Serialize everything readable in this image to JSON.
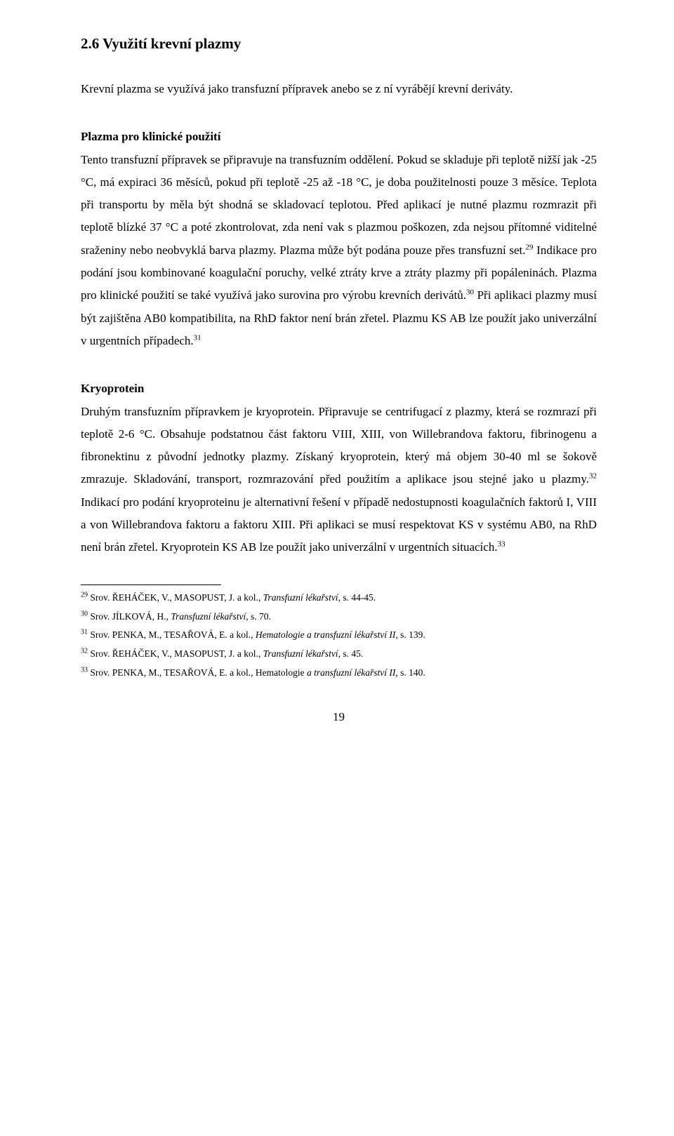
{
  "heading": "2.6 Využití krevní plazmy",
  "intro": "Krevní plazma se využívá jako transfuzní přípravek anebo se z ní vyrábějí krevní deriváty.",
  "section1": {
    "title": "Plazma pro klinické použití",
    "body_pre29": "Tento transfuzní přípravek se připravuje na transfuzním oddělení. Pokud se skladuje při teplotě nižší jak -25 °C, má expiraci 36 měsíců, pokud při teplotě -25 až -18 °C, je doba použitelnosti pouze 3 měsíce. Teplota při transportu by měla být shodná se skladovací teplotou. Před aplikací je nutné plazmu rozmrazit při teplotě blízké 37 °C a poté zkontrolovat, zda není vak s plazmou poškozen, zda nejsou přítomné viditelné sraženiny nebo neobvyklá barva plazmy. Plazma může být podána pouze přes transfuzní set.",
    "sup29": "29",
    "body_29_30": " Indikace pro podání jsou kombinované koagulační poruchy, velké ztráty krve a ztráty plazmy při popáleninách. Plazma pro klinické použití se také využívá jako surovina pro výrobu krevních derivátů.",
    "sup30": "30",
    "body_30_31": " Při aplikaci plazmy musí být zajištěna AB0 kompatibilita, na RhD faktor není brán zřetel. Plazmu KS AB lze použít jako univerzální v urgentních případech.",
    "sup31": "31"
  },
  "section2": {
    "title": "Kryoprotein",
    "body_pre32": "Druhým transfuzním přípravkem je kryoprotein. Připravuje se centrifugací z plazmy, která se rozmrazí při teplotě 2-6 °C. Obsahuje podstatnou část faktoru VIII, XIII, von Willebrandova faktoru, fibrinogenu a fibronektinu z původní jednotky plazmy. Získaný kryoprotein, který má objem 30-40 ml se šokově zmrazuje. Skladování, transport, rozmrazování před použitím a aplikace jsou stejné jako u plazmy.",
    "sup32": "32",
    "body_32_33": " Indikací pro podání kryoproteinu je alternativní řešení v případě nedostupnosti koagulačních faktorů I, VIII a von Willebrandova faktoru a faktoru XIII. Při aplikaci se musí respektovat KS v systému AB0, na RhD není brán zřetel. Kryoprotein KS AB lze použít jako univerzální v urgentních situacích.",
    "sup33": "33"
  },
  "footnotes": {
    "n29": {
      "num": "29",
      "pre": " Srov. ŘEHÁČEK, V., MASOPUST, J. a kol., ",
      "it": "Transfuzní lékařství",
      "post": ", s. 44-45."
    },
    "n30": {
      "num": "30",
      "pre": " Srov. JÍLKOVÁ, H., ",
      "it": "Transfuzní lékařství",
      "post": ", s. 70."
    },
    "n31": {
      "num": "31",
      "pre": " Srov. PENKA, M., TESAŘOVÁ, E. a kol., ",
      "it": "Hematologie a transfuzní lékařství II",
      "post": ", s. 139."
    },
    "n32": {
      "num": "32",
      "pre": " Srov. ŘEHÁČEK, V., MASOPUST, J. a kol., ",
      "it": "Transfuzní lékařství",
      "post": ", s. 45."
    },
    "n33": {
      "num": "33",
      "pre": " Srov. PENKA, M., TESAŘOVÁ, E. a kol., Hematologie ",
      "it": "a transfuzní lékařství II",
      "post": ", s. 140."
    }
  },
  "pageNumber": "19"
}
